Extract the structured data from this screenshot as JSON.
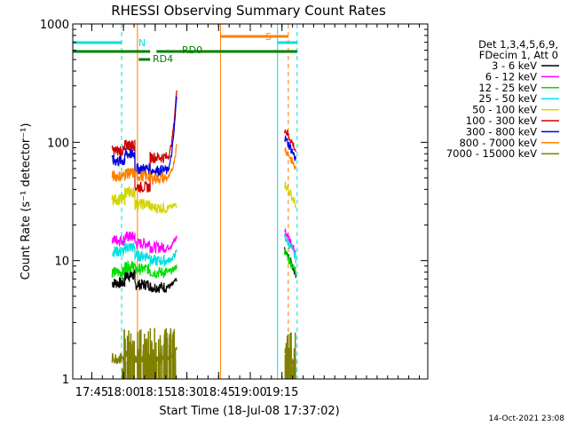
{
  "chart_data": {
    "type": "line",
    "title": "RHESSI Observing Summary Count Rates",
    "xlabel": "Start Time (18-Jul-08 17:37:02)",
    "ylabel": "Count Rate (s⁻¹ detector⁻¹)",
    "y_scale": "log",
    "ylim": [
      1,
      1000
    ],
    "y_ticks": [
      1,
      10,
      100,
      1000
    ],
    "y_tick_labels": [
      "1",
      "10",
      "100",
      "1000"
    ],
    "xlim_minutes": [
      17.6,
      20.4
    ],
    "x_ticks": [
      {
        "label": "17:45",
        "t": 17.75
      },
      {
        "label": "18:00",
        "t": 18.0
      },
      {
        "label": "18:15",
        "t": 18.25
      },
      {
        "label": "18:30",
        "t": 18.5
      },
      {
        "label": "18:45",
        "t": 18.75
      },
      {
        "label": "19:00",
        "t": 19.0
      },
      {
        "label": "19:15",
        "t": 19.25
      }
    ],
    "legend_header": [
      "Det 1,3,4,5,6,9,",
      "FDecim 1, Att 0"
    ],
    "legend_position": "right",
    "series": [
      {
        "name": "3 - 6 keV",
        "color": "#000000",
        "levels": [
          6.5,
          7.5,
          6.3,
          6.0
        ],
        "end": 7,
        "post": 12
      },
      {
        "name": "6 - 12 keV",
        "color": "#ff00ff",
        "levels": [
          15,
          16,
          14,
          13
        ],
        "end": 16,
        "post": 18
      },
      {
        "name": "12 - 25 keV",
        "color": "#00dd00",
        "levels": [
          8,
          9,
          8.5,
          8
        ],
        "end": 9,
        "post": 12
      },
      {
        "name": "25 - 50 keV",
        "color": "#00e0e0",
        "levels": [
          12,
          13,
          11,
          10
        ],
        "end": 12,
        "post": 16
      },
      {
        "name": "50 - 100 keV",
        "color": "#d4d400",
        "levels": [
          33,
          38,
          30,
          28
        ],
        "end": 30,
        "post": 45
      },
      {
        "name": "100 - 300 keV",
        "color": "#cc0000",
        "levels": [
          85,
          95,
          42,
          75
        ],
        "end": 290,
        "post": 130
      },
      {
        "name": "300 - 800 keV",
        "color": "#0000dd",
        "levels": [
          70,
          80,
          60,
          58
        ],
        "end": 260,
        "post": 110
      },
      {
        "name": "800 - 7000 keV",
        "color": "#ff8000",
        "levels": [
          52,
          55,
          52,
          50
        ],
        "end": 95,
        "post": 90
      },
      {
        "name": "7000 - 15000 keV",
        "color": "#808000",
        "levels": [
          1.5,
          1.6,
          1.5,
          1.5
        ],
        "end": 1.8,
        "post": 1.8
      }
    ],
    "annotations": {
      "night_label": "N",
      "rd0_label": "RD0",
      "rd4_label": "RD4",
      "saa_label": "S"
    }
  },
  "footer_date": "14-Oct-2021 23:08",
  "colors": {
    "night": "#00e0e0",
    "decimation": "#008000",
    "saa": "#ff8000",
    "axis": "#000000"
  }
}
